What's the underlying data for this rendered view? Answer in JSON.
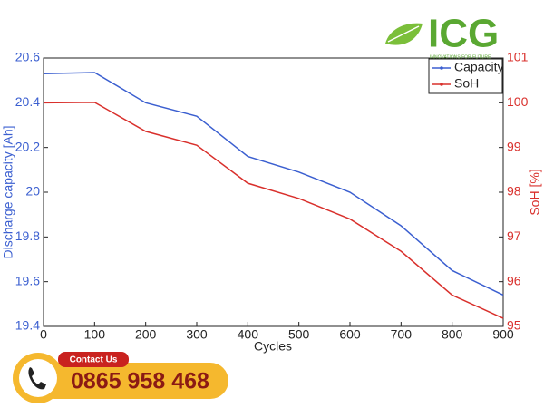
{
  "chart_data": {
    "type": "line",
    "x": [
      0,
      100,
      200,
      300,
      400,
      500,
      600,
      700,
      800,
      900
    ],
    "xlim": [
      0,
      900
    ],
    "xticks": [
      0,
      100,
      200,
      300,
      400,
      500,
      600,
      700,
      800,
      900
    ],
    "ylim": [
      19.4,
      20.6
    ],
    "yticks": [
      19.4,
      19.6,
      19.8,
      20,
      20.2,
      20.4,
      20.6
    ],
    "y2lim": [
      95,
      101
    ],
    "y2ticks": [
      95,
      96,
      97,
      98,
      99,
      100,
      101
    ],
    "x_label": "Cycles",
    "y_label": "Discharge capacity [Ah]",
    "y2_label": "SoH [%]",
    "legend": "upper right",
    "series": [
      {
        "name": "Capacity",
        "color": "#3b5fd0",
        "values": [
          20.53,
          20.535,
          20.4,
          20.34,
          20.16,
          20.09,
          20.0,
          19.85,
          19.65,
          19.54
        ]
      },
      {
        "name": "SoH",
        "color": "#d9302c",
        "axis": "y2",
        "values": [
          100.0,
          100.01,
          99.36,
          99.05,
          98.2,
          97.86,
          97.4,
          96.68,
          95.7,
          95.18
        ]
      }
    ]
  },
  "logo": {
    "brand": "ICG",
    "tagline": "INNOVATIONS FOR FUTURE"
  },
  "contact": {
    "label": "Contact Us",
    "phone": "0865 958 468"
  }
}
